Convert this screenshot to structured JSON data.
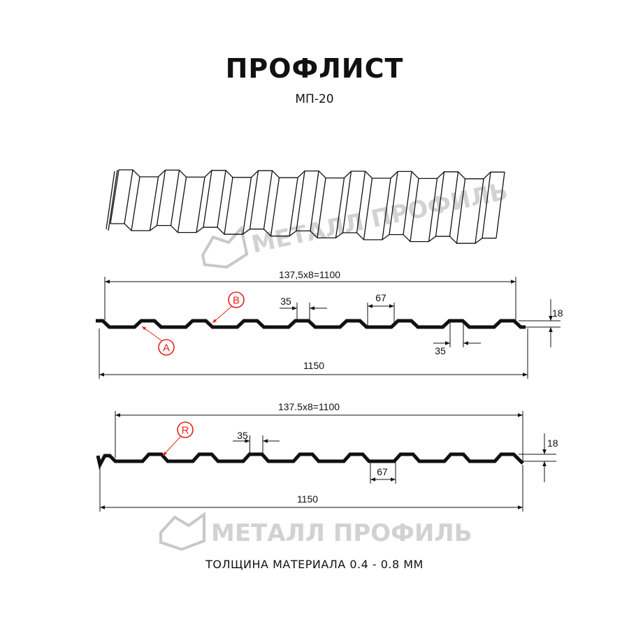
{
  "header": {
    "title": "ПРОФЛИСТ",
    "subtitle": "МП-20"
  },
  "watermark": {
    "text": "МЕТАЛЛ ПРОФИЛЬ"
  },
  "profile_a": {
    "pitch_label": "137,5x8=1100",
    "total_width_label": "1150",
    "crest_width_label": "35",
    "valley_width_label": "67",
    "bottom_crest_label": "35",
    "height_label": "18",
    "marker_b": "B",
    "marker_a": "A"
  },
  "profile_r": {
    "pitch_label": "137.5x8=1100",
    "total_width_label": "1150",
    "crest_width_label": "35",
    "valley_width_label": "67",
    "height_label": "18",
    "marker_r": "R"
  },
  "footer": {
    "thickness": "ТОЛЩИНА МАТЕРИАЛА 0.4 - 0.8 ММ"
  },
  "colors": {
    "marker": "#e2231a",
    "line": "#111111",
    "watermark": "#c8c8c8"
  }
}
